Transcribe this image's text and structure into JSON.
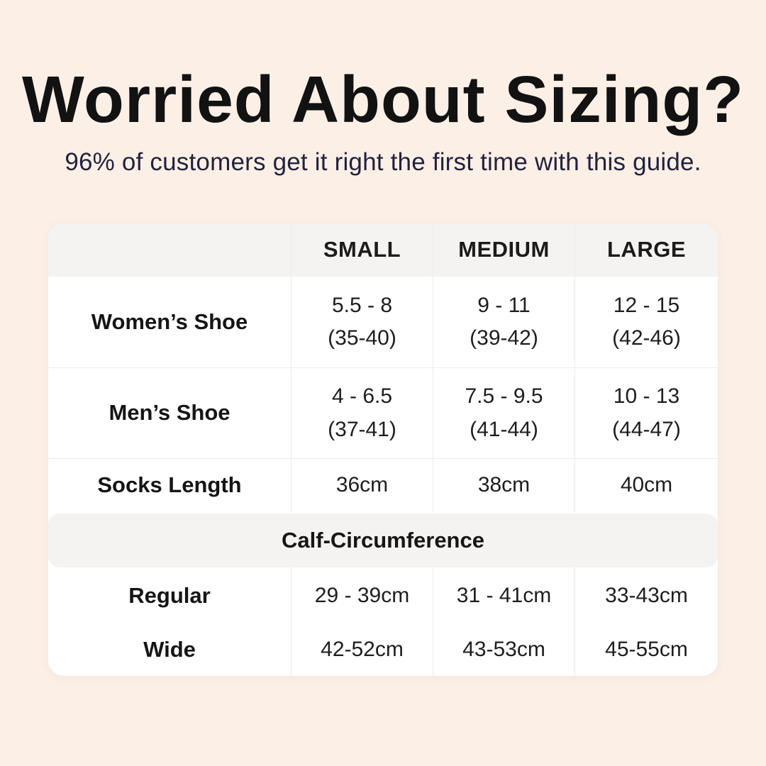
{
  "page": {
    "title": "Worried About Sizing?",
    "subtitle": "96% of customers get it right the first time with this guide."
  },
  "colors": {
    "page_background": "#FCEFE6",
    "table_background": "#FFFFFF",
    "header_band_background": "#F4F3F1",
    "grid_line": "#ECEBE8",
    "title_text": "#121212",
    "subtitle_text": "#22223E",
    "table_text": "#1E1E1E"
  },
  "table": {
    "columns": {
      "c0": "",
      "c1": "SMALL",
      "c2": "MEDIUM",
      "c3": "LARGE"
    },
    "rows": [
      {
        "label": "Women’s Shoe",
        "small": "5.5 - 8\n(35-40)",
        "medium": "9 - 11\n(39-42)",
        "large": "12 - 15\n(42-46)"
      },
      {
        "label": "Men’s Shoe",
        "small": "4 - 6.5\n(37-41)",
        "medium": "7.5 - 9.5\n(41-44)",
        "large": "10 - 13\n(44-47)"
      },
      {
        "label": "Socks Length",
        "small": "36cm",
        "medium": "38cm",
        "large": "40cm"
      }
    ],
    "section_header": "Calf-Circumference",
    "calf_rows": [
      {
        "label": "Regular",
        "small": "29 - 39cm",
        "medium": "31 - 41cm",
        "large": "33-43cm"
      },
      {
        "label": "Wide",
        "small": "42-52cm",
        "medium": "43-53cm",
        "large": "45-55cm"
      }
    ]
  },
  "chart_data": {
    "type": "table",
    "title": "Worried About Sizing?",
    "subtitle": "96% of customers get it right the first time with this guide.",
    "columns": [
      "",
      "SMALL",
      "MEDIUM",
      "LARGE"
    ],
    "rows": [
      [
        "Women’s Shoe",
        "5.5 - 8 (35-40)",
        "9 - 11 (39-42)",
        "12 - 15 (42-46)"
      ],
      [
        "Men’s Shoe",
        "4 - 6.5 (37-41)",
        "7.5 - 9.5 (41-44)",
        "10 - 13 (44-47)"
      ],
      [
        "Socks Length",
        "36cm",
        "38cm",
        "40cm"
      ],
      [
        "Calf-Circumference (section header)",
        "",
        "",
        ""
      ],
      [
        "Regular",
        "29 - 39cm",
        "31 - 41cm",
        "33-43cm"
      ],
      [
        "Wide",
        "42-52cm",
        "43-53cm",
        "45-55cm"
      ]
    ],
    "layout_hints": {
      "section_header_row_index": 3,
      "header_background": "#F4F3F1",
      "body_background": "#FFFFFF"
    }
  }
}
